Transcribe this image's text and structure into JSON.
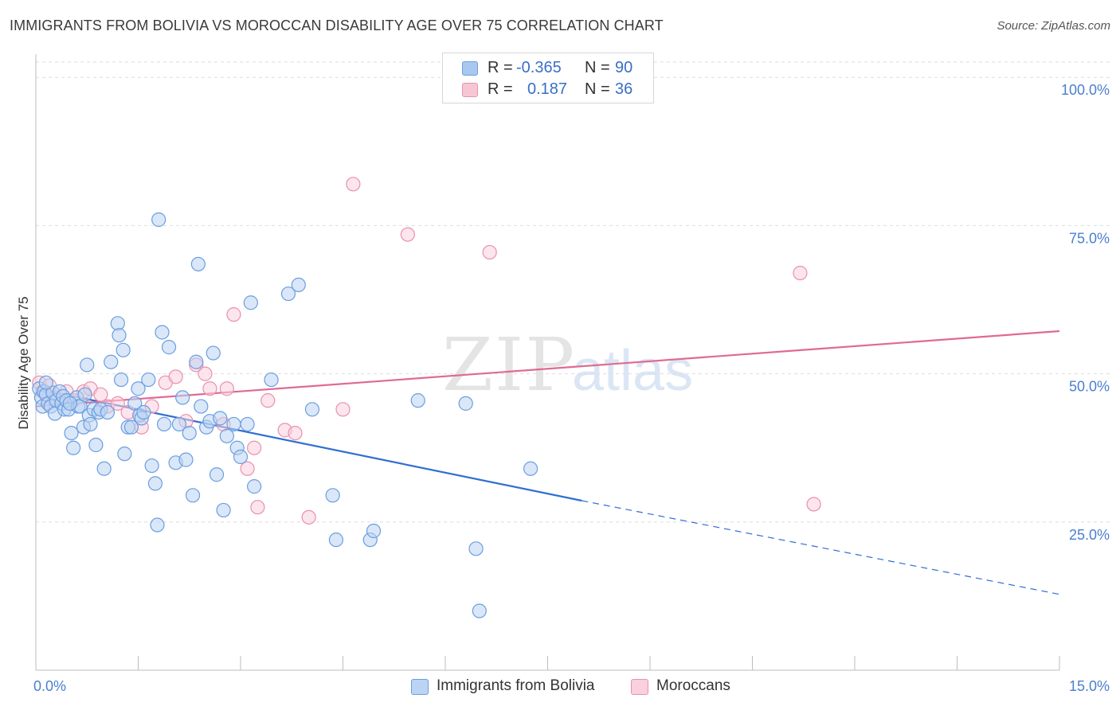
{
  "title": "IMMIGRANTS FROM BOLIVIA VS MOROCCAN DISABILITY AGE OVER 75 CORRELATION CHART",
  "source": "Source: ZipAtlas.com",
  "watermark": {
    "part1": "ZIP",
    "part2": "atlas"
  },
  "legend": {
    "rows": [
      {
        "r_label": "R =",
        "r_value": "-0.365",
        "n_label": "N =",
        "n_value": "90",
        "color": "#a9c8f0",
        "border": "#6a9ee0"
      },
      {
        "r_label": "R =",
        "r_value": "0.187",
        "n_label": "N =",
        "n_value": "36",
        "color": "#f7c6d4",
        "border": "#e991ad"
      }
    ]
  },
  "bottom_legend": [
    {
      "label": "Immigrants from Bolivia",
      "color": "#bcd4f3",
      "border": "#6a9ee0"
    },
    {
      "label": "Moroccans",
      "color": "#f9d0dc",
      "border": "#e991ad"
    }
  ],
  "chart_data": {
    "type": "scatter",
    "xlabel": "",
    "ylabel": "Disability Age Over 75",
    "xlim": [
      0,
      15
    ],
    "ylim": [
      0,
      105
    ],
    "x_tick_labels": [
      "0.0%",
      "15.0%"
    ],
    "y_ticks": [
      25,
      50,
      75,
      100
    ],
    "y_tick_labels": [
      "25.0%",
      "50.0%",
      "75.0%",
      "100.0%"
    ],
    "grid": true,
    "legend_position": "top-center",
    "series": [
      {
        "name": "Immigrants from Bolivia",
        "color": "#6a9ee0",
        "fill": "#bcd4f3",
        "trend_line": {
          "x": [
            0,
            8.0
          ],
          "y": [
            47.5,
            28.6
          ],
          "dashed_to": [
            15,
            12.8
          ],
          "color": "#2f6fd1"
        },
        "points": [
          [
            0.05,
            47.5
          ],
          [
            0.08,
            46.0
          ],
          [
            0.1,
            44.5
          ],
          [
            0.12,
            47.0
          ],
          [
            0.15,
            46.5
          ],
          [
            0.18,
            45.0
          ],
          [
            0.22,
            44.5
          ],
          [
            0.25,
            46.8
          ],
          [
            0.28,
            43.3
          ],
          [
            0.3,
            45.5
          ],
          [
            0.35,
            47.0
          ],
          [
            0.38,
            45.0
          ],
          [
            0.4,
            46.2
          ],
          [
            0.42,
            44.0
          ],
          [
            0.45,
            45.5
          ],
          [
            0.48,
            44.0
          ],
          [
            0.52,
            40.0
          ],
          [
            0.55,
            37.5
          ],
          [
            0.6,
            46.0
          ],
          [
            0.62,
            44.5
          ],
          [
            0.65,
            44.5
          ],
          [
            0.7,
            41.0
          ],
          [
            0.72,
            46.5
          ],
          [
            0.75,
            51.5
          ],
          [
            0.78,
            43.0
          ],
          [
            0.8,
            41.5
          ],
          [
            0.85,
            44.0
          ],
          [
            0.88,
            38.0
          ],
          [
            0.92,
            43.5
          ],
          [
            0.95,
            44.0
          ],
          [
            1.0,
            34.0
          ],
          [
            1.05,
            43.5
          ],
          [
            1.1,
            52.0
          ],
          [
            1.2,
            58.5
          ],
          [
            1.22,
            56.5
          ],
          [
            1.25,
            49.0
          ],
          [
            1.28,
            54.0
          ],
          [
            1.3,
            36.5
          ],
          [
            1.35,
            41.0
          ],
          [
            1.4,
            41.0
          ],
          [
            1.45,
            45.0
          ],
          [
            1.5,
            47.5
          ],
          [
            1.52,
            43.0
          ],
          [
            1.55,
            42.5
          ],
          [
            1.58,
            43.5
          ],
          [
            1.65,
            49.0
          ],
          [
            1.7,
            34.5
          ],
          [
            1.75,
            31.5
          ],
          [
            1.78,
            24.5
          ],
          [
            1.8,
            76.0
          ],
          [
            1.85,
            57.0
          ],
          [
            1.88,
            41.5
          ],
          [
            1.95,
            54.5
          ],
          [
            2.05,
            35.0
          ],
          [
            2.1,
            41.5
          ],
          [
            2.15,
            46.0
          ],
          [
            2.2,
            35.5
          ],
          [
            2.25,
            40.0
          ],
          [
            2.3,
            29.5
          ],
          [
            2.35,
            52.0
          ],
          [
            2.38,
            68.5
          ],
          [
            2.42,
            44.5
          ],
          [
            2.5,
            41.0
          ],
          [
            2.55,
            42.0
          ],
          [
            2.6,
            53.5
          ],
          [
            2.65,
            33.0
          ],
          [
            2.7,
            42.5
          ],
          [
            2.75,
            27.0
          ],
          [
            2.8,
            39.5
          ],
          [
            2.9,
            41.5
          ],
          [
            2.95,
            37.5
          ],
          [
            3.0,
            36.0
          ],
          [
            3.1,
            41.5
          ],
          [
            3.15,
            62.0
          ],
          [
            3.2,
            31.0
          ],
          [
            3.45,
            49.0
          ],
          [
            3.7,
            63.5
          ],
          [
            3.85,
            65.0
          ],
          [
            4.05,
            44.0
          ],
          [
            4.35,
            29.5
          ],
          [
            4.4,
            22.0
          ],
          [
            4.9,
            22.0
          ],
          [
            4.95,
            23.5
          ],
          [
            5.6,
            45.5
          ],
          [
            6.3,
            45.0
          ],
          [
            6.45,
            20.5
          ],
          [
            6.5,
            10.0
          ],
          [
            7.25,
            34.0
          ],
          [
            0.15,
            48.5
          ],
          [
            0.5,
            45.0
          ]
        ]
      },
      {
        "name": "Moroccans",
        "color": "#e991ad",
        "fill": "#f9d0dc",
        "trend_line": {
          "x": [
            0,
            15
          ],
          "y": [
            44.5,
            57.2
          ],
          "color": "#e06a92"
        },
        "points": [
          [
            0.05,
            48.5
          ],
          [
            0.1,
            47.0
          ],
          [
            0.2,
            48.0
          ],
          [
            0.3,
            46.0
          ],
          [
            0.45,
            47.0
          ],
          [
            0.55,
            45.5
          ],
          [
            0.7,
            47.0
          ],
          [
            0.8,
            47.5
          ],
          [
            0.95,
            46.5
          ],
          [
            1.05,
            44.5
          ],
          [
            1.2,
            45.0
          ],
          [
            1.35,
            43.5
          ],
          [
            1.55,
            41.0
          ],
          [
            1.7,
            44.5
          ],
          [
            1.9,
            48.5
          ],
          [
            2.05,
            49.5
          ],
          [
            2.2,
            42.0
          ],
          [
            2.35,
            51.5
          ],
          [
            2.48,
            50.0
          ],
          [
            2.55,
            47.5
          ],
          [
            2.75,
            41.5
          ],
          [
            2.8,
            47.5
          ],
          [
            2.9,
            60.0
          ],
          [
            3.1,
            34.0
          ],
          [
            3.2,
            37.5
          ],
          [
            3.25,
            27.5
          ],
          [
            3.4,
            45.5
          ],
          [
            3.65,
            40.5
          ],
          [
            3.8,
            40.0
          ],
          [
            4.0,
            25.8
          ],
          [
            4.5,
            44.0
          ],
          [
            4.65,
            82.0
          ],
          [
            5.45,
            73.5
          ],
          [
            6.65,
            70.5
          ],
          [
            11.2,
            67.0
          ],
          [
            11.4,
            28.0
          ]
        ]
      }
    ]
  }
}
